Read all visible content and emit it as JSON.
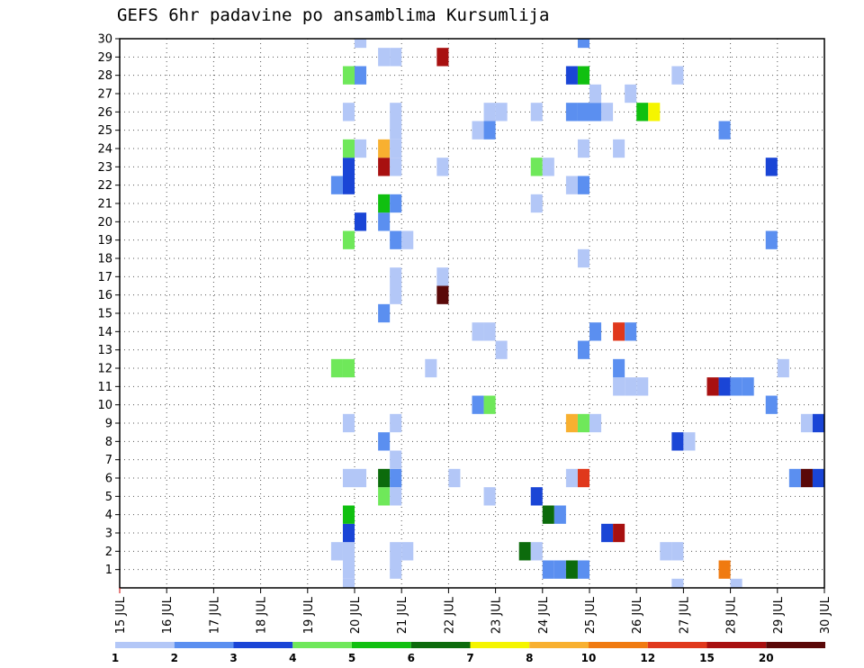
{
  "chart_data": {
    "type": "heatmap",
    "title": "GEFS 6hr padavine po ansamblima Kursumlija",
    "x_tick_labels": [
      "15 JUL",
      "16 JUL",
      "17 JUL",
      "18 JUL",
      "19 JUL",
      "20 JUL",
      "21 JUL",
      "22 JUL",
      "23 JUL",
      "24 JUL",
      "25 JUL",
      "26 JUL",
      "27 JUL",
      "28 JUL",
      "29 JUL",
      "30 JUL"
    ],
    "y_tick_labels": [
      "1",
      "2",
      "3",
      "4",
      "5",
      "6",
      "7",
      "8",
      "9",
      "10",
      "11",
      "12",
      "13",
      "14",
      "15",
      "16",
      "17",
      "18",
      "19",
      "20",
      "21",
      "22",
      "23",
      "24",
      "25",
      "26",
      "27",
      "28",
      "29",
      "30"
    ],
    "xlim_days": [
      15,
      30
    ],
    "ylim_members": [
      0,
      30
    ],
    "grid": "dotted",
    "colorbar": {
      "position": "bottom",
      "labels": [
        "1",
        "2",
        "3",
        "4",
        "5",
        "6",
        "7",
        "8",
        "10",
        "12",
        "15",
        "20"
      ],
      "colors": [
        "#b3c7f7",
        "#5b8ff0",
        "#1a45d6",
        "#6fe85a",
        "#10c010",
        "#0c6b0c",
        "#f5f500",
        "#f8b030",
        "#f07a10",
        "#e0381c",
        "#a81010",
        "#5a0808"
      ]
    },
    "cells_note": "each cell: [day (start, data units), member, precip class index 0-11]",
    "cells": [
      [
        19.75,
        1,
        0
      ],
      [
        20.75,
        1,
        0
      ],
      [
        24.0,
        1,
        1
      ],
      [
        24.25,
        1,
        1
      ],
      [
        24.5,
        1,
        5
      ],
      [
        24.75,
        1,
        1
      ],
      [
        27.75,
        1,
        8
      ],
      [
        19.5,
        2,
        0
      ],
      [
        19.75,
        2,
        0
      ],
      [
        20.75,
        2,
        0
      ],
      [
        21.0,
        2,
        0
      ],
      [
        23.5,
        2,
        5
      ],
      [
        23.75,
        2,
        0
      ],
      [
        26.5,
        2,
        0
      ],
      [
        26.75,
        2,
        0
      ],
      [
        19.75,
        3,
        2
      ],
      [
        25.25,
        3,
        2
      ],
      [
        25.5,
        3,
        10
      ],
      [
        19.75,
        4,
        4
      ],
      [
        24.0,
        4,
        5
      ],
      [
        24.25,
        4,
        1
      ],
      [
        20.5,
        5,
        3
      ],
      [
        20.75,
        5,
        0
      ],
      [
        22.75,
        5,
        0
      ],
      [
        23.75,
        5,
        2
      ],
      [
        19.75,
        6,
        0
      ],
      [
        20.0,
        6,
        0
      ],
      [
        20.5,
        6,
        5
      ],
      [
        20.75,
        6,
        1
      ],
      [
        22.0,
        6,
        0
      ],
      [
        24.5,
        6,
        0
      ],
      [
        24.75,
        6,
        9
      ],
      [
        29.25,
        6,
        1
      ],
      [
        29.5,
        6,
        11
      ],
      [
        29.75,
        6,
        2
      ],
      [
        20.75,
        7,
        0
      ],
      [
        20.5,
        8,
        1
      ],
      [
        26.75,
        8,
        2
      ],
      [
        27.0,
        8,
        0
      ],
      [
        19.75,
        9,
        0
      ],
      [
        20.75,
        9,
        0
      ],
      [
        24.5,
        9,
        7
      ],
      [
        24.75,
        9,
        3
      ],
      [
        25.0,
        9,
        0
      ],
      [
        29.5,
        9,
        0
      ],
      [
        29.75,
        9,
        2
      ],
      [
        22.5,
        10,
        1
      ],
      [
        22.75,
        10,
        3
      ],
      [
        28.75,
        10,
        1
      ],
      [
        25.5,
        11,
        0
      ],
      [
        25.75,
        11,
        0
      ],
      [
        26.0,
        11,
        0
      ],
      [
        27.5,
        11,
        10
      ],
      [
        27.75,
        11,
        2
      ],
      [
        28.0,
        11,
        1
      ],
      [
        28.25,
        11,
        1
      ],
      [
        19.5,
        12,
        3
      ],
      [
        19.75,
        12,
        3
      ],
      [
        21.5,
        12,
        0
      ],
      [
        25.5,
        12,
        1
      ],
      [
        29.0,
        12,
        0
      ],
      [
        23.0,
        13,
        0
      ],
      [
        24.75,
        13,
        1
      ],
      [
        22.5,
        14,
        0
      ],
      [
        22.75,
        14,
        0
      ],
      [
        25.0,
        14,
        1
      ],
      [
        25.5,
        14,
        9
      ],
      [
        25.75,
        14,
        1
      ],
      [
        20.5,
        15,
        1
      ],
      [
        20.75,
        16,
        0
      ],
      [
        21.75,
        16,
        11
      ],
      [
        20.75,
        17,
        0
      ],
      [
        21.75,
        17,
        0
      ],
      [
        24.75,
        18,
        0
      ],
      [
        20.75,
        19,
        1
      ],
      [
        21.0,
        19,
        0
      ],
      [
        19.75,
        19,
        3
      ],
      [
        28.75,
        19,
        1
      ],
      [
        20.5,
        20,
        1
      ],
      [
        20.0,
        20,
        2
      ],
      [
        20.5,
        21,
        4
      ],
      [
        20.75,
        21,
        1
      ],
      [
        23.75,
        21,
        0
      ],
      [
        19.5,
        22,
        1
      ],
      [
        19.75,
        22,
        2
      ],
      [
        24.5,
        22,
        0
      ],
      [
        24.75,
        22,
        1
      ],
      [
        19.75,
        23,
        2
      ],
      [
        20.5,
        23,
        10
      ],
      [
        20.75,
        23,
        0
      ],
      [
        21.75,
        23,
        0
      ],
      [
        23.75,
        23,
        3
      ],
      [
        24.0,
        23,
        0
      ],
      [
        28.75,
        23,
        2
      ],
      [
        19.75,
        24,
        3
      ],
      [
        20.0,
        24,
        0
      ],
      [
        20.5,
        24,
        7
      ],
      [
        20.75,
        24,
        0
      ],
      [
        24.75,
        24,
        0
      ],
      [
        25.5,
        24,
        0
      ],
      [
        20.75,
        25,
        0
      ],
      [
        22.5,
        25,
        0
      ],
      [
        22.75,
        25,
        1
      ],
      [
        27.75,
        25,
        1
      ],
      [
        19.75,
        26,
        0
      ],
      [
        20.75,
        26,
        0
      ],
      [
        22.75,
        26,
        0
      ],
      [
        23.0,
        26,
        0
      ],
      [
        23.75,
        26,
        0
      ],
      [
        24.5,
        26,
        1
      ],
      [
        24.75,
        26,
        1
      ],
      [
        25.0,
        26,
        1
      ],
      [
        25.25,
        26,
        0
      ],
      [
        26.0,
        26,
        4
      ],
      [
        26.25,
        26,
        6
      ],
      [
        25.0,
        27,
        0
      ],
      [
        25.75,
        27,
        0
      ],
      [
        19.75,
        28,
        3
      ],
      [
        20.0,
        28,
        1
      ],
      [
        24.5,
        28,
        2
      ],
      [
        24.75,
        28,
        4
      ],
      [
        26.75,
        28,
        0
      ],
      [
        20.5,
        29,
        0
      ],
      [
        20.75,
        29,
        0
      ],
      [
        21.75,
        29,
        10
      ],
      [
        20.0,
        30,
        0
      ],
      [
        24.75,
        30,
        1
      ],
      [
        19.75,
        0,
        0
      ],
      [
        26.75,
        0,
        0
      ],
      [
        28.0,
        0,
        0
      ]
    ]
  }
}
